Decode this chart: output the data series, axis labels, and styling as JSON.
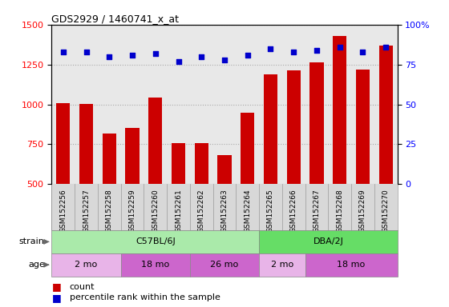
{
  "title": "GDS2929 / 1460741_x_at",
  "samples": [
    "GSM152256",
    "GSM152257",
    "GSM152258",
    "GSM152259",
    "GSM152260",
    "GSM152261",
    "GSM152262",
    "GSM152263",
    "GSM152264",
    "GSM152265",
    "GSM152266",
    "GSM152267",
    "GSM152268",
    "GSM152269",
    "GSM152270"
  ],
  "counts": [
    1010,
    1005,
    820,
    855,
    1045,
    755,
    755,
    680,
    950,
    1190,
    1215,
    1265,
    1430,
    1220,
    1370
  ],
  "percentiles": [
    83,
    83,
    80,
    81,
    82,
    77,
    80,
    78,
    81,
    85,
    83,
    84,
    86,
    83,
    86
  ],
  "bar_color": "#cc0000",
  "dot_color": "#0000cc",
  "ylim_left": [
    500,
    1500
  ],
  "ylim_right": [
    0,
    100
  ],
  "yticks_left": [
    500,
    750,
    1000,
    1250,
    1500
  ],
  "yticks_right": [
    0,
    25,
    50,
    75,
    100
  ],
  "strain_groups": [
    {
      "label": "C57BL/6J",
      "start": 0,
      "end": 8,
      "color": "#aaeaaa"
    },
    {
      "label": "DBA/2J",
      "start": 9,
      "end": 14,
      "color": "#66dd66"
    }
  ],
  "age_groups": [
    {
      "label": "2 mo",
      "start": 0,
      "end": 2,
      "color": "#e8b4e8"
    },
    {
      "label": "18 mo",
      "start": 3,
      "end": 5,
      "color": "#cc66cc"
    },
    {
      "label": "26 mo",
      "start": 6,
      "end": 8,
      "color": "#cc66cc"
    },
    {
      "label": "2 mo",
      "start": 9,
      "end": 10,
      "color": "#e8b4e8"
    },
    {
      "label": "18 mo",
      "start": 11,
      "end": 14,
      "color": "#cc66cc"
    }
  ],
  "background_color": "#ffffff",
  "grid_color": "#aaaaaa",
  "plot_bg": "#e8e8e8",
  "xlabel_bg": "#d8d8d8"
}
